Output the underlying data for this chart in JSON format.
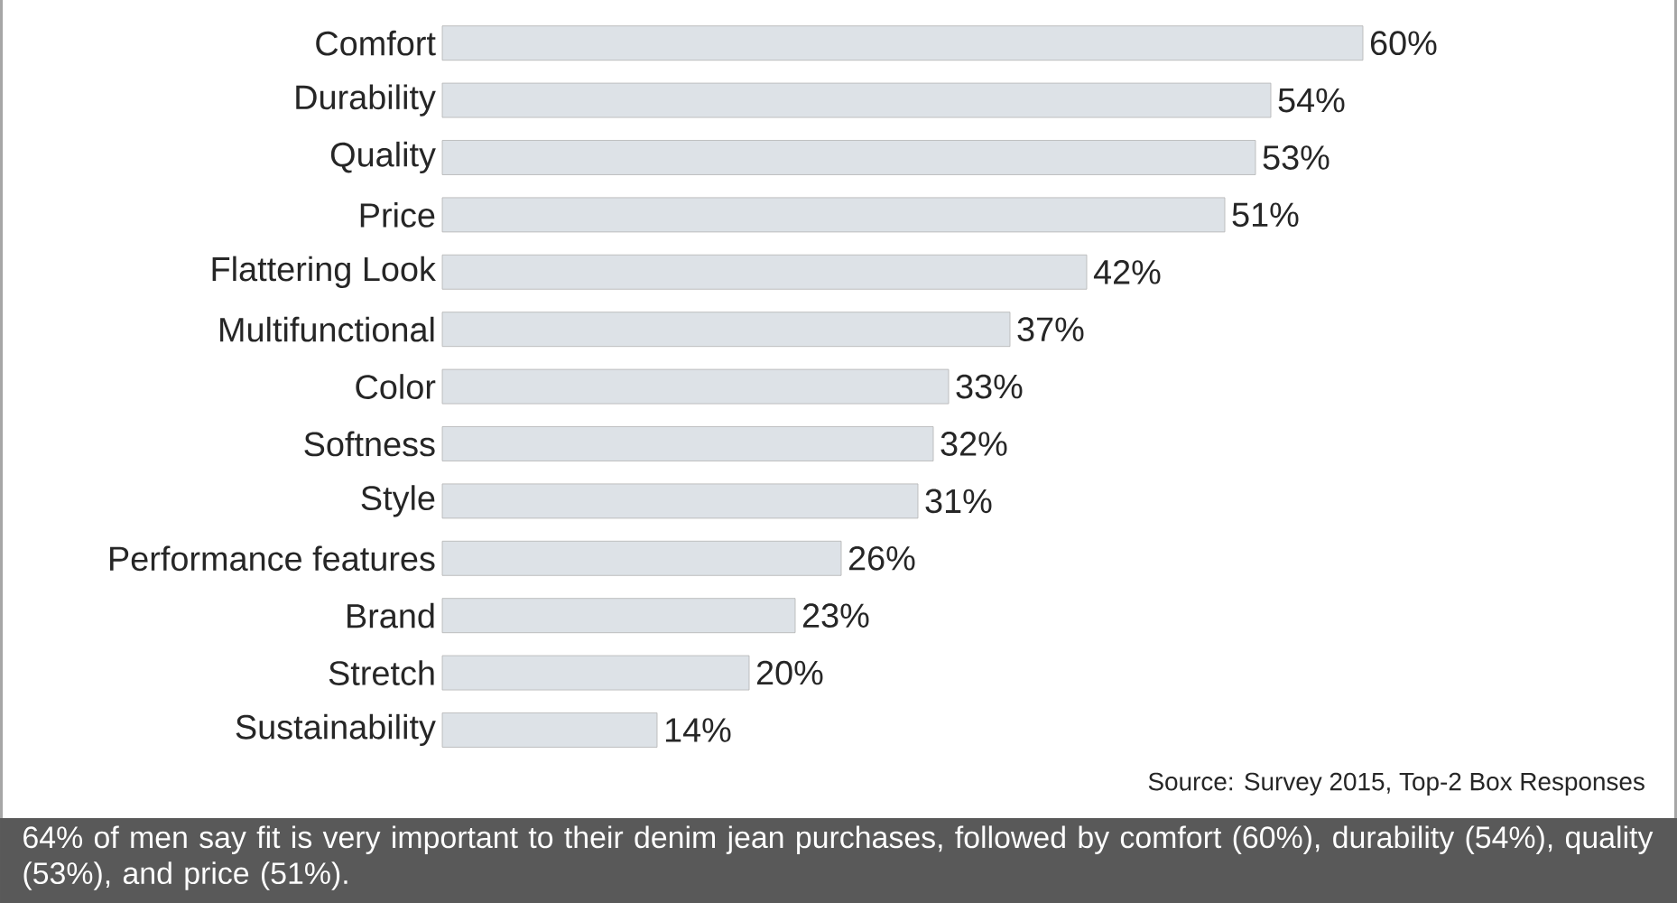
{
  "chart_data": {
    "type": "bar",
    "orientation": "horizontal",
    "categories": [
      "Comfort",
      "Durability",
      "Quality",
      "Price",
      "Flattering Look",
      "Multifunctional",
      "Color",
      "Softness",
      "Style",
      "Performance features",
      "Brand",
      "Stretch",
      "Sustainability"
    ],
    "values": [
      60,
      54,
      53,
      51,
      42,
      37,
      33,
      32,
      31,
      26,
      23,
      20,
      14
    ],
    "value_labels": [
      "60%",
      "54%",
      "53%",
      "51%",
      "42%",
      "37%",
      "33%",
      "32%",
      "31%",
      "26%",
      "23%",
      "20%",
      "14%"
    ],
    "color": "#dde2e7",
    "annotations": [
      "Source: Survey 2015, Top-2 Box Responses",
      "64% of men say fit is very important to their denim jean purchases, followed by comfort (60%), durability (54%), quality (53%), and price (51%)."
    ]
  }
}
